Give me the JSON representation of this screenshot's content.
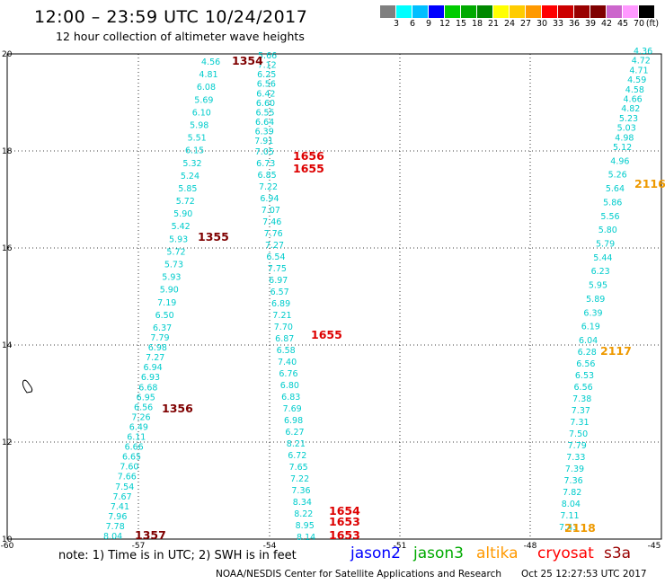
{
  "header": {
    "title": "12:00 – 23:59 UTC 10/24/2017",
    "subtitle": "12 hour collection of altimeter wave heights"
  },
  "color_scale": {
    "colors": [
      "#7f7f7f",
      "#00ffff",
      "#00bfff",
      "#0000ff",
      "#00cc00",
      "#00aa00",
      "#008800",
      "#ffff00",
      "#ffcc00",
      "#ff9900",
      "#ff0000",
      "#cc0000",
      "#990000",
      "#7f0000",
      "#cc66cc",
      "#ff99ff",
      "#000000"
    ],
    "labels": [
      "3",
      "6",
      "9",
      "12",
      "15",
      "18",
      "21",
      "24",
      "27",
      "30",
      "33",
      "36",
      "39",
      "42",
      "45",
      "70"
    ],
    "unit": "(ft)"
  },
  "axes": {
    "lon_ticks": [
      "-60",
      "-57",
      "-54",
      "-51",
      "-48",
      "-45"
    ],
    "lat_ticks": [
      "10",
      "12",
      "14",
      "16",
      "18",
      "20"
    ]
  },
  "tracks": [
    {
      "color": "#00cccc",
      "values": [
        "4.56",
        "4.81",
        "6.08",
        "5.69",
        "6.10",
        "5.98",
        "5.51",
        "6.15",
        "5.32",
        "5.24",
        "5.85",
        "5.72",
        "5.90",
        "5.42",
        "5.93",
        "5.72",
        "5.73",
        "5.93",
        "5.90",
        "7.19",
        "6.50",
        "6.37",
        "7.79",
        "6.98",
        "7.27",
        "6.94",
        "6.93",
        "6.68",
        "6.95",
        "6.56",
        "7.26",
        "6.49",
        "6.11",
        "6.66",
        "6.65",
        "7.60",
        "7.66",
        "7.54",
        "7.67",
        "7.41",
        "7.96",
        "7.78",
        "8.04"
      ]
    },
    {
      "color": "#00cccc",
      "values": [
        "5.66",
        "7.12",
        "6.25",
        "6.56",
        "6.42",
        "6.60",
        "6.55",
        "6.64",
        "6.39",
        "7.91",
        "7.05",
        "6.73",
        "6.85",
        "7.22",
        "6.94",
        "7.07",
        "7.46",
        "7.76",
        "7.27",
        "6.54",
        "7.75",
        "6.97",
        "6.57",
        "6.89",
        "7.21",
        "7.70",
        "6.87",
        "6.58",
        "7.40",
        "6.76",
        "6.80",
        "6.83",
        "7.69",
        "6.98",
        "6.27",
        "8.21",
        "6.72",
        "7.65",
        "7.22",
        "7.36",
        "8.34",
        "8.22",
        "8.95",
        "8.14"
      ]
    },
    {
      "color": "#00cccc",
      "values": [
        "4.36",
        "4.72",
        "4.71",
        "4.59",
        "4.58",
        "4.66",
        "4.82",
        "5.23",
        "5.03",
        "4.98",
        "5.12",
        "4.96",
        "5.26",
        "5.64",
        "5.86",
        "5.56",
        "5.80",
        "5.79",
        "5.44",
        "6.23",
        "5.95",
        "5.89",
        "6.39",
        "6.19",
        "6.04",
        "6.28",
        "6.56",
        "6.53",
        "6.56",
        "7.38",
        "7.37",
        "7.31",
        "7.50",
        "7.79",
        "7.33",
        "7.39",
        "7.36",
        "7.82",
        "8.04",
        "7.11",
        "7.43"
      ]
    }
  ],
  "time_labels": [
    {
      "text": "1354",
      "color": "#7f0000"
    },
    {
      "text": "1355",
      "color": "#7f0000"
    },
    {
      "text": "1356",
      "color": "#7f0000"
    },
    {
      "text": "1357",
      "color": "#7f0000"
    },
    {
      "text": "1656",
      "color": "#dd0000"
    },
    {
      "text": "1655",
      "color": "#dd0000"
    },
    {
      "text": "1655",
      "color": "#dd0000"
    },
    {
      "text": "1654",
      "color": "#dd0000"
    },
    {
      "text": "1653",
      "color": "#dd0000"
    },
    {
      "text": "1653",
      "color": "#dd0000"
    },
    {
      "text": "2116",
      "color": "#ee9900"
    },
    {
      "text": "2117",
      "color": "#ee9900"
    },
    {
      "text": "2118",
      "color": "#ee9900"
    }
  ],
  "note": "note: 1) Time is in UTC; 2) SWH is in feet",
  "legend": [
    {
      "name": "jason2",
      "color": "#0000ff"
    },
    {
      "name": "jason3",
      "color": "#00aa00"
    },
    {
      "name": "altika",
      "color": "#ff9900"
    },
    {
      "name": "cryosat",
      "color": "#ff0000"
    },
    {
      "name": "s3a",
      "color": "#990000"
    }
  ],
  "footer": {
    "credit": "NOAA/NESDIS Center for Satellite Applications and Research",
    "timestamp": "Oct 25 12:27:53 UTC 2017"
  }
}
